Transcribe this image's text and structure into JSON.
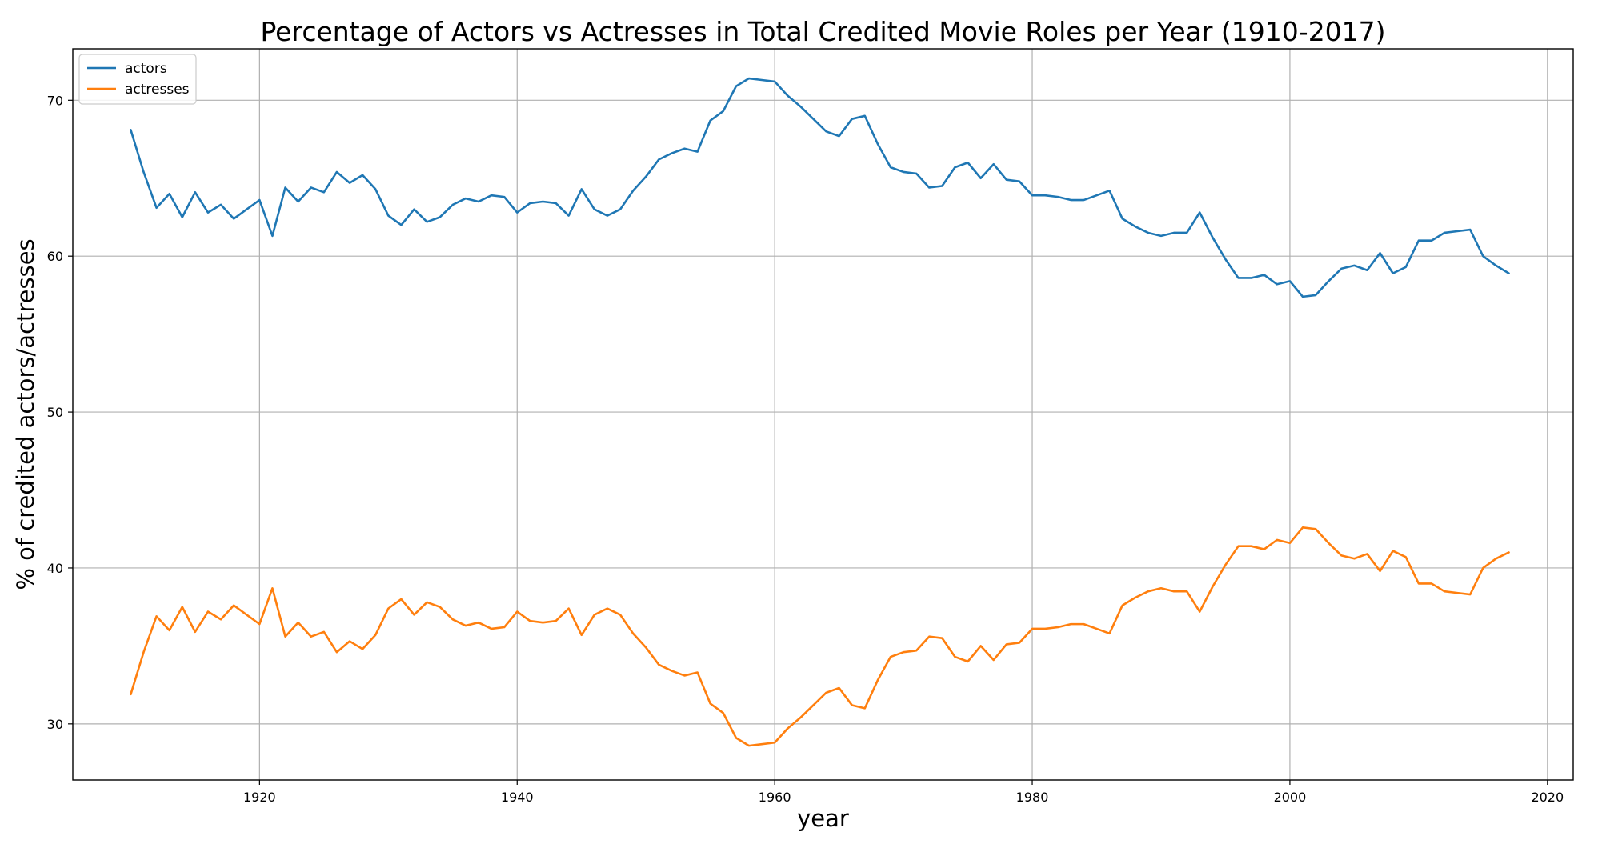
{
  "chart_data": {
    "type": "line",
    "title": "Percentage of Actors vs Actresses in Total Credited Movie Roles per Year (1910-2017)",
    "xlabel": "year",
    "ylabel": "% of credited actors/actresses",
    "xlim": [
      1905.5,
      2022.0
    ],
    "ylim": [
      26.4,
      73.3
    ],
    "xticks": [
      1920,
      1940,
      1960,
      1980,
      2000,
      2020
    ],
    "yticks": [
      30,
      40,
      50,
      60,
      70
    ],
    "grid": true,
    "legend_position": "top-left",
    "x": [
      1910,
      1911,
      1912,
      1913,
      1914,
      1915,
      1916,
      1917,
      1918,
      1919,
      1920,
      1921,
      1922,
      1923,
      1924,
      1925,
      1926,
      1927,
      1928,
      1929,
      1930,
      1931,
      1932,
      1933,
      1934,
      1935,
      1936,
      1937,
      1938,
      1939,
      1940,
      1941,
      1942,
      1943,
      1944,
      1945,
      1946,
      1947,
      1948,
      1949,
      1950,
      1951,
      1952,
      1953,
      1954,
      1955,
      1956,
      1957,
      1958,
      1959,
      1960,
      1961,
      1962,
      1963,
      1964,
      1965,
      1966,
      1967,
      1968,
      1969,
      1970,
      1971,
      1972,
      1973,
      1974,
      1975,
      1976,
      1977,
      1978,
      1979,
      1980,
      1981,
      1982,
      1983,
      1984,
      1985,
      1986,
      1987,
      1988,
      1989,
      1990,
      1991,
      1992,
      1993,
      1994,
      1995,
      1996,
      1997,
      1998,
      1999,
      2000,
      2001,
      2002,
      2003,
      2004,
      2005,
      2006,
      2007,
      2008,
      2009,
      2010,
      2011,
      2012,
      2013,
      2014,
      2015,
      2016,
      2017
    ],
    "series": [
      {
        "name": "actors",
        "color": "#1f77b4",
        "values": [
          68.1,
          65.4,
          63.1,
          64.0,
          62.5,
          64.1,
          62.8,
          63.3,
          62.4,
          63.0,
          63.6,
          61.3,
          64.4,
          63.5,
          64.4,
          64.1,
          65.4,
          64.7,
          65.2,
          64.3,
          62.6,
          62.0,
          63.0,
          62.2,
          62.5,
          63.3,
          63.7,
          63.5,
          63.9,
          63.8,
          62.8,
          63.4,
          63.5,
          63.4,
          62.6,
          64.3,
          63.0,
          62.6,
          63.0,
          64.2,
          65.1,
          66.2,
          66.6,
          66.9,
          66.7,
          68.7,
          69.3,
          70.9,
          71.4,
          71.3,
          71.2,
          70.3,
          69.6,
          68.8,
          68.0,
          67.7,
          68.8,
          69.0,
          67.2,
          65.7,
          65.4,
          65.3,
          64.4,
          64.5,
          65.7,
          66.0,
          65.0,
          65.9,
          64.9,
          64.8,
          63.9,
          63.9,
          63.8,
          63.6,
          63.6,
          63.9,
          64.2,
          62.4,
          61.9,
          61.5,
          61.3,
          61.5,
          61.5,
          62.8,
          61.2,
          59.8,
          58.6,
          58.6,
          58.8,
          58.2,
          58.4,
          57.4,
          57.5,
          58.4,
          59.2,
          59.4,
          59.1,
          60.2,
          58.9,
          59.3,
          61.0,
          61.0,
          61.5,
          61.6,
          61.7,
          60.0,
          59.4,
          58.9
        ]
      },
      {
        "name": "actresses",
        "color": "#ff7f0e",
        "values": [
          31.9,
          34.6,
          36.9,
          36.0,
          37.5,
          35.9,
          37.2,
          36.7,
          37.6,
          37.0,
          36.4,
          38.7,
          35.6,
          36.5,
          35.6,
          35.9,
          34.6,
          35.3,
          34.8,
          35.7,
          37.4,
          38.0,
          37.0,
          37.8,
          37.5,
          36.7,
          36.3,
          36.5,
          36.1,
          36.2,
          37.2,
          36.6,
          36.5,
          36.6,
          37.4,
          35.7,
          37.0,
          37.4,
          37.0,
          35.8,
          34.9,
          33.8,
          33.4,
          33.1,
          33.3,
          31.3,
          30.7,
          29.1,
          28.6,
          28.7,
          28.8,
          29.7,
          30.4,
          31.2,
          32.0,
          32.3,
          31.2,
          31.0,
          32.8,
          34.3,
          34.6,
          34.7,
          35.6,
          35.5,
          34.3,
          34.0,
          35.0,
          34.1,
          35.1,
          35.2,
          36.1,
          36.1,
          36.2,
          36.4,
          36.4,
          36.1,
          35.8,
          37.6,
          38.1,
          38.5,
          38.7,
          38.5,
          38.5,
          37.2,
          38.8,
          40.2,
          41.4,
          41.4,
          41.2,
          41.8,
          41.6,
          42.6,
          42.5,
          41.6,
          40.8,
          40.6,
          40.9,
          39.8,
          41.1,
          40.7,
          39.0,
          39.0,
          38.5,
          38.4,
          38.3,
          40.0,
          40.6,
          41.0
        ]
      }
    ]
  }
}
